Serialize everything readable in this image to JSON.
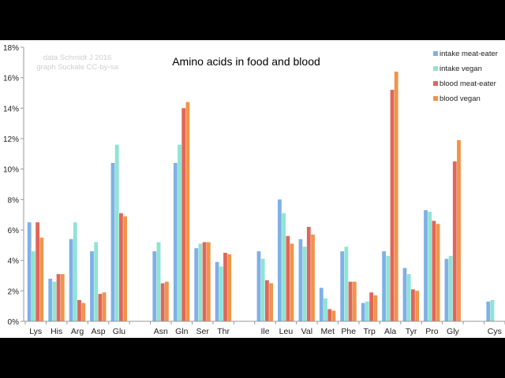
{
  "chart_data": {
    "type": "bar",
    "title": "Amino acids in food and blood",
    "watermark_lines": [
      "data Schmidt J 2016",
      "graph Suckale CC-by-sa"
    ],
    "xlabel": "",
    "ylabel": "",
    "ylim": [
      0,
      18
    ],
    "yticks": [
      "0%",
      "2%",
      "4%",
      "6%",
      "8%",
      "10%",
      "12%",
      "14%",
      "16%",
      "18%"
    ],
    "grid": false,
    "legend_position": "top-right",
    "categories": [
      "Lys",
      "His",
      "Arg",
      "Asp",
      "Glu",
      "",
      "Asn",
      "Gln",
      "Ser",
      "Thr",
      "",
      "Ile",
      "Leu",
      "Val",
      "Met",
      "Phe",
      "Trp",
      "Ala",
      "Tyr",
      "Pro",
      "Gly",
      "",
      "Cys"
    ],
    "series": [
      {
        "name": "intake meat-eater",
        "color": "#7fb0e6",
        "values": [
          6.5,
          2.8,
          5.4,
          4.6,
          10.4,
          null,
          4.6,
          10.4,
          4.8,
          3.9,
          null,
          4.6,
          8.0,
          5.4,
          2.2,
          4.6,
          1.2,
          4.6,
          3.5,
          7.3,
          4.1,
          null,
          1.3
        ]
      },
      {
        "name": "intake vegan",
        "color": "#8fe4d4",
        "values": [
          4.6,
          2.6,
          6.5,
          5.2,
          11.6,
          null,
          5.2,
          11.6,
          5.1,
          3.6,
          null,
          4.1,
          7.1,
          4.9,
          1.5,
          4.9,
          1.3,
          4.3,
          3.1,
          7.2,
          4.3,
          null,
          1.4
        ]
      },
      {
        "name": "blood meat-eater",
        "color": "#e0665a",
        "values": [
          6.5,
          3.1,
          1.4,
          1.8,
          7.1,
          null,
          2.5,
          14.0,
          5.2,
          4.5,
          null,
          2.7,
          5.6,
          6.2,
          0.8,
          2.6,
          1.9,
          15.2,
          2.1,
          6.6,
          10.5,
          null,
          null
        ]
      },
      {
        "name": "blood vegan",
        "color": "#f0944a",
        "values": [
          5.5,
          3.1,
          1.2,
          1.9,
          6.9,
          null,
          2.6,
          14.4,
          5.2,
          4.4,
          null,
          2.5,
          5.1,
          5.7,
          0.7,
          2.6,
          1.7,
          16.4,
          2.0,
          6.4,
          11.9,
          null,
          null
        ]
      }
    ]
  }
}
